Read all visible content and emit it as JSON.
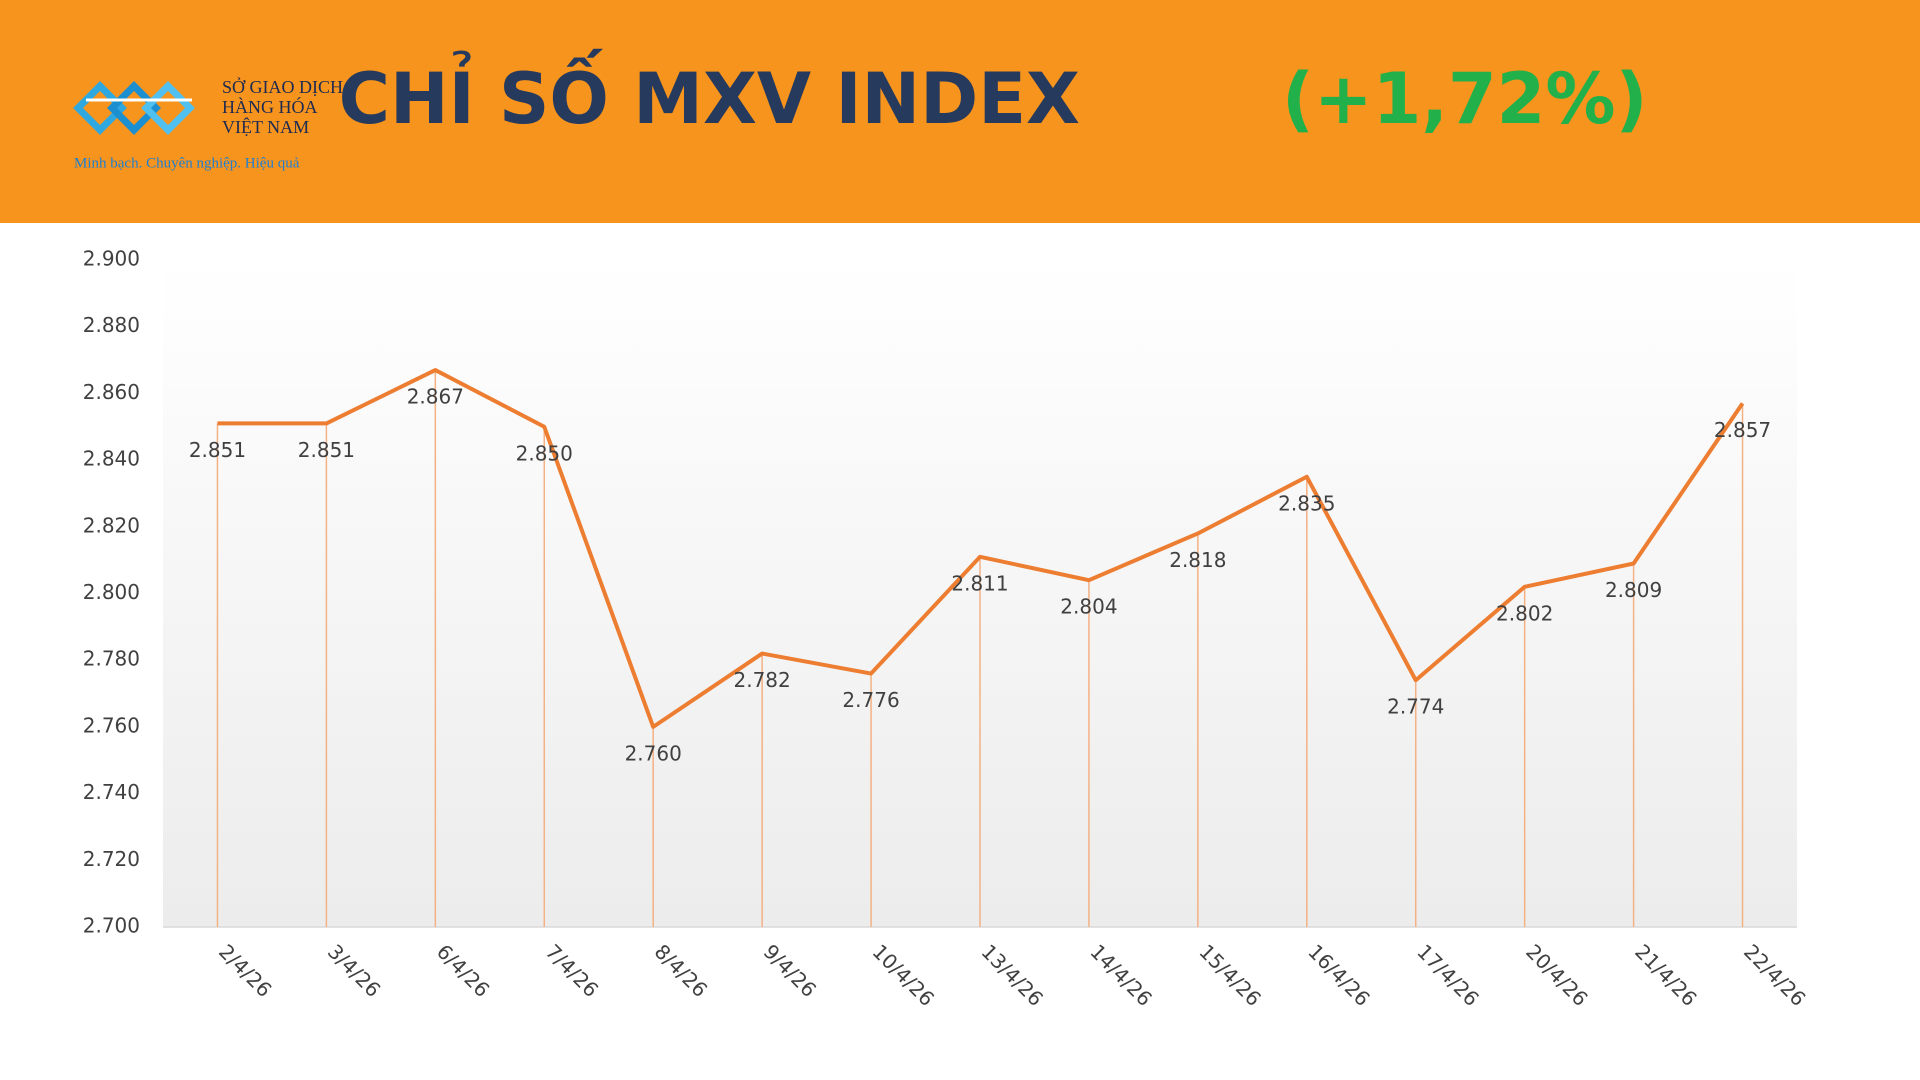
{
  "logo": {
    "lines": [
      "SỞ GIAO DỊCH",
      "HÀNG HÓA",
      "VIỆT NAM"
    ],
    "slogan": "Minh bạch. Chuyên nghiệp. Hiệu quả"
  },
  "chart_data": {
    "type": "line",
    "title": "CHỈ SỐ MXV INDEX",
    "title_change": "(+1,72%)",
    "categories": [
      "2/4/26",
      "3/4/26",
      "6/4/26",
      "7/4/26",
      "8/4/26",
      "9/4/26",
      "10/4/26",
      "13/4/26",
      "14/4/26",
      "15/4/26",
      "16/4/26",
      "17/4/26",
      "20/4/26",
      "21/4/26",
      "22/4/26"
    ],
    "series": [
      {
        "name": "MXV Index",
        "color": "#ed7d31",
        "values": [
          2851,
          2851,
          2867,
          2850,
          2760,
          2782,
          2776,
          2811,
          2804,
          2818,
          2835,
          2774,
          2802,
          2809,
          2857
        ],
        "value_labels": [
          "2.851",
          "2.851",
          "2.867",
          "2.850",
          "2.760",
          "2.782",
          "2.776",
          "2.811",
          "2.804",
          "2.818",
          "2.835",
          "2.774",
          "2.802",
          "2.809",
          "2.857"
        ]
      }
    ],
    "ylim": [
      2700,
      2900
    ],
    "yticks": [
      {
        "value": 2700,
        "label": "2.700"
      },
      {
        "value": 2720,
        "label": "2.720"
      },
      {
        "value": 2740,
        "label": "2.740"
      },
      {
        "value": 2760,
        "label": "2.760"
      },
      {
        "value": 2780,
        "label": "2.780"
      },
      {
        "value": 2800,
        "label": "2.800"
      },
      {
        "value": 2820,
        "label": "2.820"
      },
      {
        "value": 2840,
        "label": "2.840"
      },
      {
        "value": 2860,
        "label": "2.860"
      },
      {
        "value": 2880,
        "label": "2.880"
      },
      {
        "value": 2900,
        "label": "2.900"
      }
    ],
    "drop_lines": true
  }
}
